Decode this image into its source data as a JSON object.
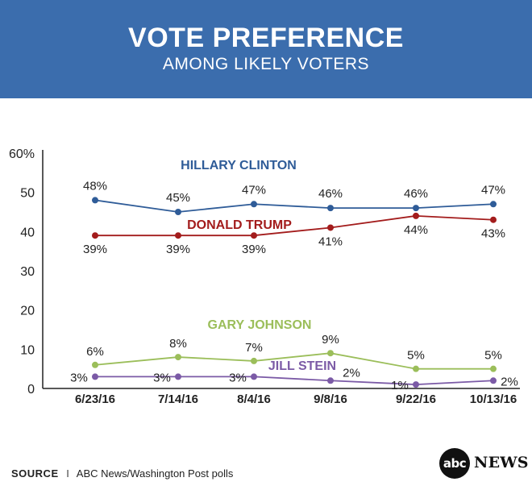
{
  "header": {
    "title": "VOTE PREFERENCE",
    "subtitle": "AMONG LIKELY VOTERS"
  },
  "chart_data": {
    "type": "line",
    "title": "VOTE PREFERENCE",
    "subtitle": "AMONG LIKELY VOTERS",
    "xlabel": "",
    "ylabel": "",
    "categories": [
      "6/23/16",
      "7/14/16",
      "8/4/16",
      "9/8/16",
      "9/22/16",
      "10/13/16"
    ],
    "ylim": [
      0,
      60
    ],
    "yticks": [
      0,
      10,
      20,
      30,
      40,
      50,
      60
    ],
    "ytick_labels": [
      "0",
      "10",
      "20",
      "30",
      "40",
      "50",
      "60%"
    ],
    "grid": false,
    "series": [
      {
        "name": "HILLARY CLINTON",
        "color": "#2f5c98",
        "values": [
          48,
          45,
          47,
          46,
          46,
          47
        ],
        "labels": [
          "48%",
          "45%",
          "47%",
          "46%",
          "46%",
          "47%"
        ],
        "label_position": "above"
      },
      {
        "name": "DONALD TRUMP",
        "color": "#a31c1c",
        "values": [
          39,
          39,
          39,
          41,
          44,
          43
        ],
        "labels": [
          "39%",
          "39%",
          "39%",
          "41%",
          "44%",
          "43%"
        ],
        "label_position": "below"
      },
      {
        "name": "GARY JOHNSON",
        "color": "#9bbe5a",
        "values": [
          6,
          8,
          7,
          9,
          5,
          5
        ],
        "labels": [
          "6%",
          "8%",
          "7%",
          "9%",
          "5%",
          "5%"
        ],
        "label_position": "above"
      },
      {
        "name": "JILL STEIN",
        "color": "#7b5aa6",
        "values": [
          3,
          3,
          3,
          2,
          1,
          2
        ],
        "labels": [
          "3%",
          "3%",
          "3%",
          "2%",
          "1%",
          "2%"
        ],
        "label_position": "left"
      }
    ]
  },
  "footer": {
    "source_label": "SOURCE",
    "separator": "I",
    "source_text": "ABC News/Washington Post polls"
  },
  "logo": {
    "mark": "abc",
    "word": "NEWS"
  }
}
